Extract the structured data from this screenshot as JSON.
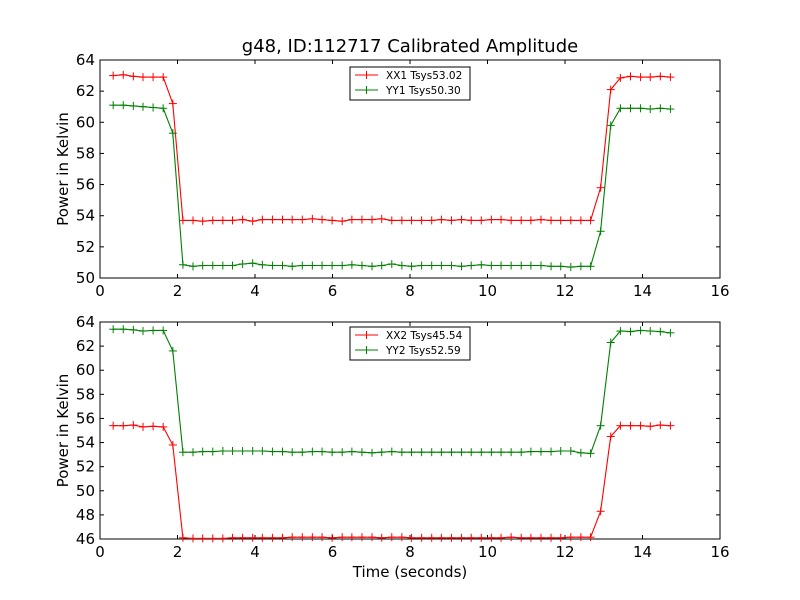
{
  "figure": {
    "title": "g48, ID:112717 Calibrated Amplitude"
  },
  "chart_data": [
    {
      "type": "line",
      "title": "g48, ID:112717 Calibrated Amplitude",
      "xlabel": "",
      "ylabel": "Power in Kelvin",
      "xlim": [
        0,
        16
      ],
      "ylim": [
        50,
        64
      ],
      "xticks": [
        "0",
        "2",
        "4",
        "6",
        "8",
        "10",
        "12",
        "14",
        "16"
      ],
      "yticks": [
        "50",
        "52",
        "54",
        "56",
        "58",
        "60",
        "62",
        "64"
      ],
      "grid": false,
      "legend_position": "top-center",
      "marker": "+",
      "x": [
        0.34,
        0.6,
        0.86,
        1.11,
        1.37,
        1.63,
        1.88,
        2.14,
        2.4,
        2.65,
        2.91,
        3.17,
        3.42,
        3.68,
        3.94,
        4.19,
        4.45,
        4.71,
        4.96,
        5.22,
        5.48,
        5.73,
        5.99,
        6.25,
        6.5,
        6.76,
        7.02,
        7.27,
        7.53,
        7.79,
        8.04,
        8.3,
        8.56,
        8.81,
        9.07,
        9.33,
        9.58,
        9.84,
        10.1,
        10.35,
        10.61,
        10.87,
        11.12,
        11.38,
        11.64,
        11.89,
        12.15,
        12.41,
        12.66,
        12.92,
        13.18,
        13.43,
        13.69,
        13.95,
        14.2,
        14.46,
        14.72
      ],
      "series": [
        {
          "name": "XX1 Tsys53.02",
          "color": "#ff0000",
          "values": [
            63.0,
            63.05,
            62.95,
            62.9,
            62.9,
            62.9,
            61.2,
            53.7,
            53.7,
            53.65,
            53.7,
            53.7,
            53.7,
            53.75,
            53.65,
            53.75,
            53.75,
            53.75,
            53.75,
            53.75,
            53.8,
            53.75,
            53.7,
            53.65,
            53.75,
            53.75,
            53.75,
            53.8,
            53.7,
            53.7,
            53.7,
            53.7,
            53.7,
            53.75,
            53.7,
            53.75,
            53.7,
            53.7,
            53.75,
            53.75,
            53.7,
            53.7,
            53.7,
            53.75,
            53.7,
            53.7,
            53.7,
            53.7,
            53.7,
            55.8,
            62.1,
            62.85,
            62.95,
            62.9,
            62.9,
            62.95,
            62.9
          ]
        },
        {
          "name": "YY1 Tsys50.30",
          "color": "#008000",
          "values": [
            61.1,
            61.1,
            61.05,
            61.0,
            60.95,
            60.9,
            59.3,
            50.85,
            50.75,
            50.8,
            50.8,
            50.8,
            50.8,
            50.9,
            50.95,
            50.85,
            50.8,
            50.8,
            50.75,
            50.8,
            50.8,
            50.8,
            50.8,
            50.8,
            50.85,
            50.8,
            50.75,
            50.8,
            50.9,
            50.8,
            50.75,
            50.8,
            50.8,
            50.8,
            50.8,
            50.75,
            50.8,
            50.85,
            50.8,
            50.8,
            50.8,
            50.8,
            50.8,
            50.8,
            50.75,
            50.75,
            50.7,
            50.75,
            50.75,
            53.0,
            59.8,
            60.9,
            60.9,
            60.9,
            60.85,
            60.9,
            60.85
          ]
        }
      ]
    },
    {
      "type": "line",
      "title": "",
      "xlabel": "Time (seconds)",
      "ylabel": "Power in Kelvin",
      "xlim": [
        0,
        16
      ],
      "ylim": [
        46,
        64
      ],
      "xticks": [
        "0",
        "2",
        "4",
        "6",
        "8",
        "10",
        "12",
        "14",
        "16"
      ],
      "yticks": [
        "46",
        "48",
        "50",
        "52",
        "54",
        "56",
        "58",
        "60",
        "62",
        "64"
      ],
      "grid": false,
      "legend_position": "top-center",
      "marker": "+",
      "x": [
        0.34,
        0.6,
        0.86,
        1.11,
        1.37,
        1.63,
        1.88,
        2.14,
        2.4,
        2.65,
        2.91,
        3.17,
        3.42,
        3.68,
        3.94,
        4.19,
        4.45,
        4.71,
        4.96,
        5.22,
        5.48,
        5.73,
        5.99,
        6.25,
        6.5,
        6.76,
        7.02,
        7.27,
        7.53,
        7.79,
        8.04,
        8.3,
        8.56,
        8.81,
        9.07,
        9.33,
        9.58,
        9.84,
        10.1,
        10.35,
        10.61,
        10.87,
        11.12,
        11.38,
        11.64,
        11.89,
        12.15,
        12.41,
        12.66,
        12.92,
        13.18,
        13.43,
        13.69,
        13.95,
        14.2,
        14.46,
        14.72
      ],
      "series": [
        {
          "name": "XX2 Tsys45.54",
          "color": "#ff0000",
          "values": [
            55.4,
            55.4,
            55.45,
            55.3,
            55.35,
            55.3,
            53.8,
            46.1,
            46.05,
            46.05,
            46.05,
            46.05,
            46.1,
            46.1,
            46.1,
            46.1,
            46.1,
            46.1,
            46.15,
            46.15,
            46.15,
            46.15,
            46.1,
            46.15,
            46.15,
            46.15,
            46.15,
            46.1,
            46.15,
            46.15,
            46.1,
            46.1,
            46.1,
            46.1,
            46.1,
            46.1,
            46.1,
            46.1,
            46.1,
            46.1,
            46.15,
            46.1,
            46.1,
            46.1,
            46.1,
            46.1,
            46.15,
            46.15,
            46.15,
            48.3,
            54.5,
            55.4,
            55.4,
            55.4,
            55.35,
            55.45,
            55.4
          ]
        },
        {
          "name": "YY2 Tsys52.59",
          "color": "#008000",
          "values": [
            63.4,
            63.4,
            63.35,
            63.25,
            63.3,
            63.3,
            61.6,
            53.2,
            53.2,
            53.25,
            53.25,
            53.3,
            53.3,
            53.3,
            53.3,
            53.3,
            53.25,
            53.25,
            53.2,
            53.2,
            53.25,
            53.25,
            53.2,
            53.2,
            53.25,
            53.2,
            53.15,
            53.2,
            53.25,
            53.2,
            53.2,
            53.2,
            53.2,
            53.2,
            53.2,
            53.2,
            53.2,
            53.2,
            53.2,
            53.2,
            53.2,
            53.2,
            53.25,
            53.25,
            53.25,
            53.3,
            53.3,
            53.15,
            53.1,
            55.4,
            62.3,
            63.25,
            63.2,
            63.3,
            63.25,
            63.2,
            63.1
          ]
        }
      ]
    }
  ]
}
